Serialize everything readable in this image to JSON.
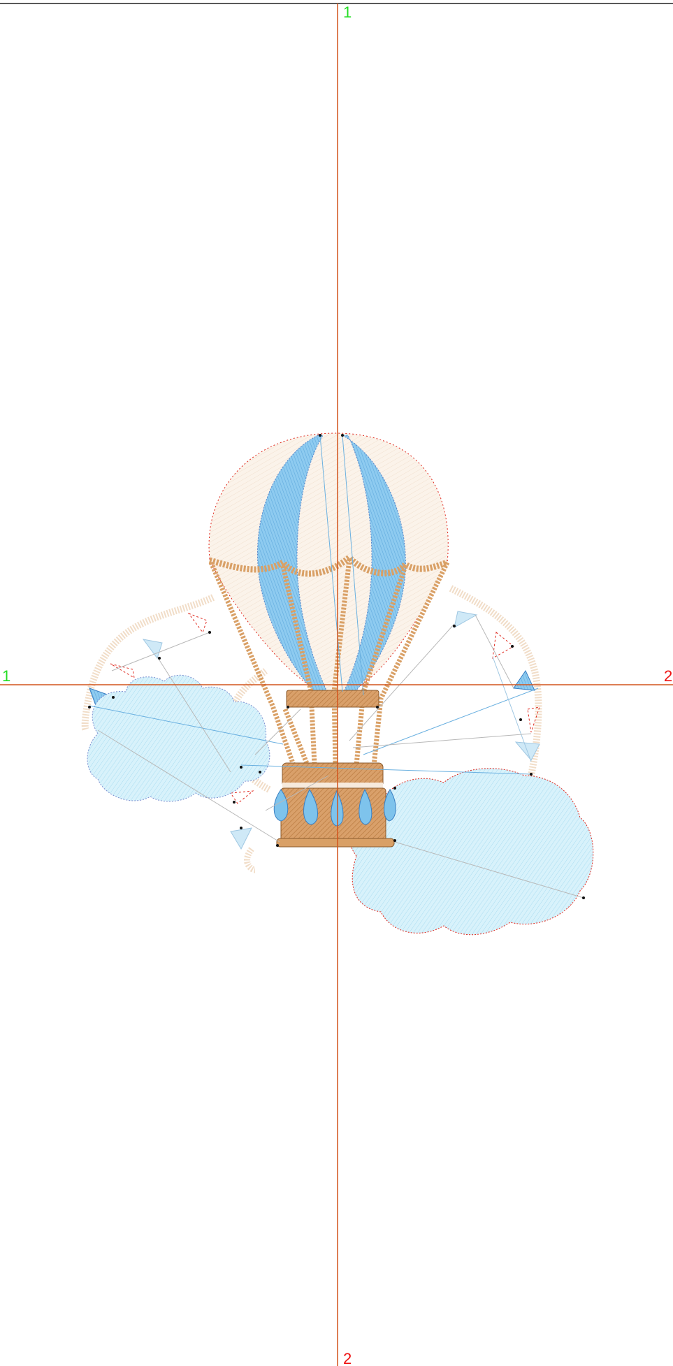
{
  "guides": {
    "vertical": {
      "start_label": "1",
      "end_label": "2",
      "start_color": "#22dd22",
      "end_color": "#ee1111"
    },
    "horizontal": {
      "start_label": "1",
      "end_label": "2",
      "start_color": "#22dd22",
      "end_color": "#ee1111"
    },
    "line_color": "#d2541c"
  },
  "design": {
    "subject": "hot-air-balloon-with-clouds-and-bunting",
    "colors": {
      "envelope_fill": "#faf1e8",
      "stripe_blue": "#7ec3ec",
      "tan_satin": "#d9a066",
      "basket_brown": "#c98b4e",
      "cloud_fill": "#d6f1fb",
      "flag_blue": "#8ecbf0",
      "outline_red": "#e0281e",
      "jump_stitch_gray": "#b8b8b8",
      "jump_stitch_blue": "#6ab0e0"
    }
  }
}
